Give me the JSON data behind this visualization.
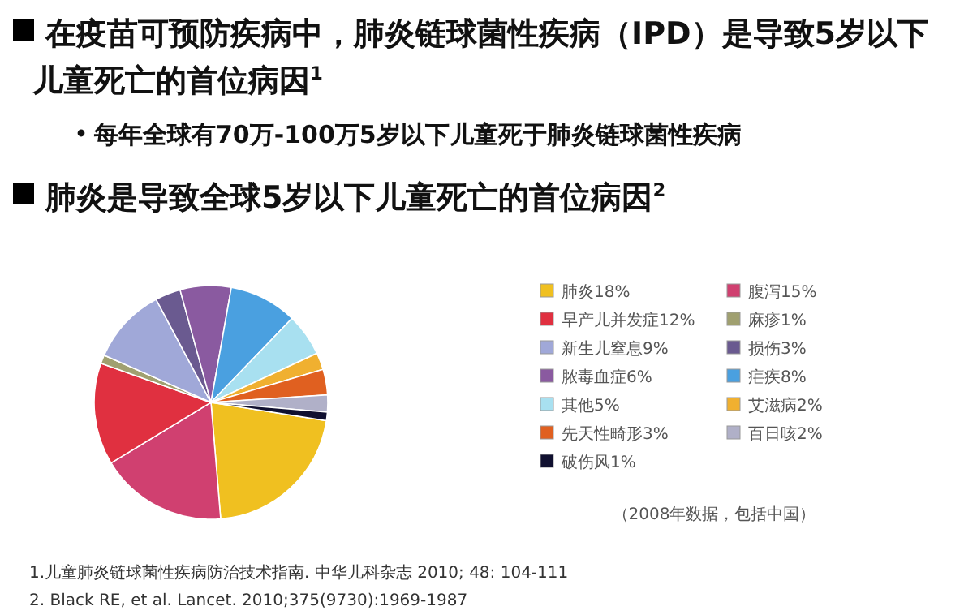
{
  "chart_data": {
    "type": "pie",
    "title": "在疫苗可预防疾病中，肺炎链球菌性疾病（IPD）是导致5岁以下儿童死亡的首位病因$^{1}$",
    "subtitle": "每年全球有70万-100万5岁以下儿童死于肺炎链球菌性疾病",
    "categories": [
      "肺炎18%",
      "腹泻15%",
      "早产儿并发症12%",
      "麻疹1%",
      "新生儿窒息9%",
      "损伤3%",
      "脓毒血症6%",
      "疟疾8%",
      "其他5%",
      "艾滋病2%",
      "先天性畸形3%",
      "百日咳2%",
      "破伤风1%"
    ],
    "values": [
      18,
      15,
      12,
      1,
      9,
      3,
      6,
      8,
      5,
      2,
      3,
      2,
      1
    ],
    "colors": [
      "#f0c020",
      "#d04070",
      "#e03040",
      "#a0a070",
      "#a0a8d8",
      "#6a5a90",
      "#8a5aa0",
      "#4aa0e0",
      "#a8e0f0",
      "#f0b030",
      "#e06020",
      "#b0b0c8",
      "#101030"
    ],
    "legend": "right",
    "annotations": [
      "肺炎是导致全球5岁以下儿童死亡的首位病因$^{2}$",
      "（2008年数据，包括中国）",
      "1.儿童肺炎链球菌性疾病防治技术指南. 中华儿科杂志 2010; 48: 104-111",
      "2. Black RE, et al. Lancet. 2010;375(9730):1969-1987"
    ]
  }
}
